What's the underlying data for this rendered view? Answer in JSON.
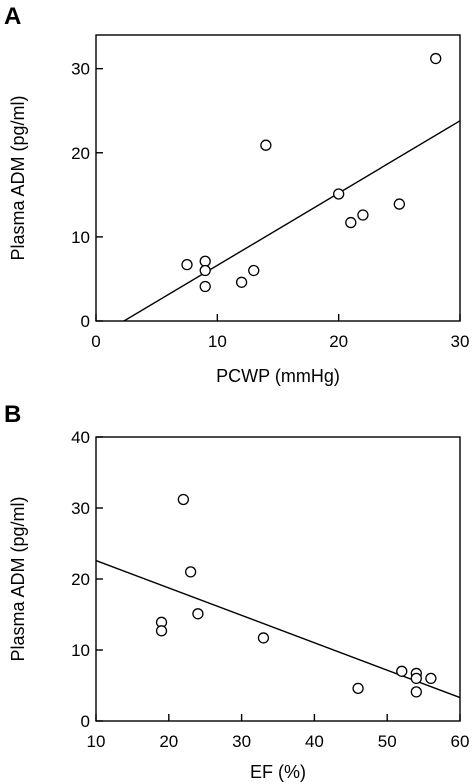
{
  "chart_data": [
    {
      "panel": "A",
      "type": "scatter",
      "xlabel": "PCWP (mmHg)",
      "ylabel": "Plasma ADM (pg/ml)",
      "xlim": [
        0,
        30
      ],
      "ylim": [
        0,
        34
      ],
      "xticks": [
        0,
        10,
        20,
        30
      ],
      "yticks": [
        0,
        10,
        20,
        30
      ],
      "x": [
        7.5,
        9,
        9,
        9,
        12,
        13,
        14,
        20,
        21,
        22,
        25,
        28
      ],
      "y": [
        6.7,
        7.1,
        6.0,
        4.1,
        4.6,
        6.0,
        20.9,
        15.1,
        11.7,
        12.6,
        13.9,
        31.2
      ],
      "fit_line": {
        "x": [
          2.3,
          30
        ],
        "y": [
          0,
          23.8
        ]
      },
      "grid": false
    },
    {
      "panel": "B",
      "type": "scatter",
      "xlabel": "EF (%)",
      "ylabel": "Plasma ADM (pg/ml)",
      "xlim": [
        10,
        60
      ],
      "ylim": [
        0,
        40
      ],
      "xticks": [
        10,
        20,
        30,
        40,
        50,
        60
      ],
      "yticks": [
        0,
        10,
        20,
        30,
        40
      ],
      "x": [
        22,
        23,
        24,
        19,
        19,
        33,
        46,
        52,
        54,
        54,
        56,
        54
      ],
      "y": [
        31.2,
        21.0,
        15.1,
        13.9,
        12.7,
        11.7,
        4.6,
        7.0,
        6.7,
        6.0,
        6.0,
        4.1
      ],
      "fit_line": {
        "x": [
          10,
          60
        ],
        "y": [
          22.6,
          3.3
        ]
      },
      "grid": false
    }
  ]
}
